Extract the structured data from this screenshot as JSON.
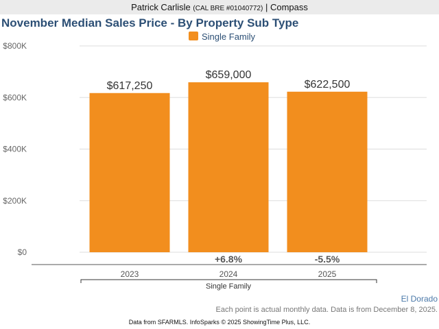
{
  "header": {
    "agent": "Patrick Carlisle",
    "license": "(CAL BRE #01040772)",
    "separator": "|",
    "brokerage": "Compass"
  },
  "chart_data": {
    "type": "bar",
    "title": "November Median Sales Price - By Property Sub Type",
    "legend": {
      "entries": [
        "Single Family"
      ],
      "placement": "top-center"
    },
    "categories": [
      "2023",
      "2024",
      "2025"
    ],
    "group_label": "Single Family",
    "series": [
      {
        "name": "Single Family",
        "color": "#f28e1e",
        "values": [
          617250,
          659000,
          622500
        ],
        "labels": [
          "$617,250",
          "$659,000",
          "$622,500"
        ]
      }
    ],
    "changes": [
      "",
      "+6.8%",
      "-5.5%"
    ],
    "yticks": [
      {
        "v": 0,
        "label": "$0"
      },
      {
        "v": 200000,
        "label": "$200K"
      },
      {
        "v": 400000,
        "label": "$400K"
      },
      {
        "v": 600000,
        "label": "$600K"
      },
      {
        "v": 800000,
        "label": "$800K"
      }
    ],
    "ylim": [
      0,
      800000
    ],
    "grid": true
  },
  "footer": {
    "region": "El Dorado",
    "note": "Each point is actual monthly data. Data is from December 8, 2025.",
    "source": "Data from SFARMLS. InfoSparks © 2025 ShowingTime Plus, LLC."
  }
}
